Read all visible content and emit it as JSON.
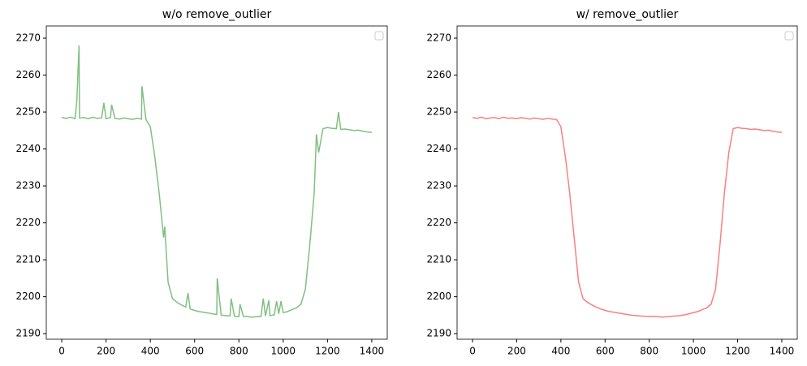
{
  "chart_data": [
    {
      "type": "line",
      "title": "w/o remove_outlier",
      "x": [
        0,
        20,
        40,
        60,
        68,
        78,
        80,
        100,
        120,
        140,
        160,
        180,
        190,
        200,
        220,
        225,
        240,
        260,
        280,
        300,
        320,
        340,
        360,
        362,
        380,
        400,
        420,
        440,
        460,
        465,
        480,
        500,
        520,
        540,
        560,
        570,
        580,
        600,
        620,
        640,
        660,
        680,
        700,
        702,
        720,
        740,
        760,
        765,
        780,
        800,
        805,
        820,
        840,
        860,
        880,
        900,
        910,
        920,
        935,
        940,
        960,
        970,
        980,
        990,
        1000,
        1020,
        1040,
        1060,
        1080,
        1100,
        1120,
        1140,
        1150,
        1160,
        1180,
        1200,
        1220,
        1240,
        1250,
        1260,
        1280,
        1300,
        1320,
        1340,
        1360,
        1380,
        1400
      ],
      "series": [
        {
          "color": "#81bf81",
          "values": [
            2248.5,
            2248.3,
            2248.6,
            2248.2,
            2253,
            2268,
            2248.4,
            2248.5,
            2248.2,
            2248.6,
            2248.3,
            2248.4,
            2252.5,
            2248.2,
            2248.5,
            2252,
            2248.3,
            2248.1,
            2248.4,
            2248.2,
            2248.0,
            2248.3,
            2248.1,
            2257,
            2248.0,
            2246,
            2238,
            2228,
            2216,
            2219,
            2204,
            2199.5,
            2198.5,
            2197.8,
            2197.2,
            2201,
            2196.7,
            2196.3,
            2196,
            2195.8,
            2195.6,
            2195.4,
            2195.2,
            2205,
            2195,
            2194.9,
            2194.8,
            2199.5,
            2194.7,
            2194.6,
            2198,
            2194.7,
            2194.6,
            2194.5,
            2194.6,
            2194.7,
            2199.5,
            2194.8,
            2199,
            2194.9,
            2195.1,
            2198.8,
            2195.4,
            2198.8,
            2195.7,
            2196,
            2196.5,
            2197,
            2198,
            2202,
            2214,
            2228,
            2244,
            2239,
            2245.5,
            2245.8,
            2245.6,
            2245.5,
            2250,
            2245.3,
            2245.4,
            2245.2,
            2245,
            2245.1,
            2244.8,
            2244.6,
            2244.5
          ]
        }
      ],
      "xlim": [
        -70,
        1470
      ],
      "ylim": [
        2188.5,
        2273.3
      ],
      "xticks": [
        0,
        200,
        400,
        600,
        800,
        1000,
        1200,
        1400
      ],
      "yticks": [
        2190,
        2200,
        2210,
        2220,
        2230,
        2240,
        2250,
        2260,
        2270
      ],
      "legend": "upper right"
    },
    {
      "type": "line",
      "title": "w/ remove_outlier",
      "x": [
        0,
        20,
        40,
        60,
        80,
        100,
        120,
        140,
        160,
        180,
        200,
        220,
        240,
        260,
        280,
        300,
        320,
        340,
        360,
        380,
        400,
        420,
        440,
        460,
        480,
        500,
        520,
        540,
        560,
        580,
        600,
        620,
        640,
        660,
        680,
        700,
        720,
        740,
        760,
        780,
        800,
        820,
        840,
        860,
        880,
        900,
        920,
        940,
        960,
        980,
        1000,
        1020,
        1040,
        1060,
        1080,
        1100,
        1120,
        1140,
        1160,
        1180,
        1200,
        1220,
        1240,
        1260,
        1280,
        1300,
        1320,
        1340,
        1360,
        1380,
        1400
      ],
      "series": [
        {
          "color": "#f88080",
          "values": [
            2248.5,
            2248.3,
            2248.6,
            2248.2,
            2248.4,
            2248.5,
            2248.2,
            2248.6,
            2248.3,
            2248.4,
            2248.2,
            2248.5,
            2248.3,
            2248.1,
            2248.4,
            2248.2,
            2248.0,
            2248.3,
            2248.1,
            2248.0,
            2246,
            2238,
            2228,
            2216,
            2204,
            2199.5,
            2198.5,
            2197.8,
            2197.2,
            2196.7,
            2196.3,
            2196,
            2195.8,
            2195.6,
            2195.4,
            2195.2,
            2195,
            2194.9,
            2194.8,
            2194.7,
            2194.6,
            2194.7,
            2194.6,
            2194.5,
            2194.6,
            2194.7,
            2194.8,
            2194.9,
            2195.1,
            2195.4,
            2195.7,
            2196,
            2196.5,
            2197,
            2198,
            2202,
            2214,
            2228,
            2239,
            2245.5,
            2245.8,
            2245.6,
            2245.5,
            2245.3,
            2245.4,
            2245.2,
            2245,
            2245.1,
            2244.8,
            2244.6,
            2244.5
          ]
        }
      ],
      "xlim": [
        -70,
        1470
      ],
      "ylim": [
        2188.5,
        2273.3
      ],
      "xticks": [
        0,
        200,
        400,
        600,
        800,
        1000,
        1200,
        1400
      ],
      "yticks": [
        2190,
        2200,
        2210,
        2220,
        2230,
        2240,
        2250,
        2260,
        2270
      ],
      "legend": "upper right"
    }
  ]
}
